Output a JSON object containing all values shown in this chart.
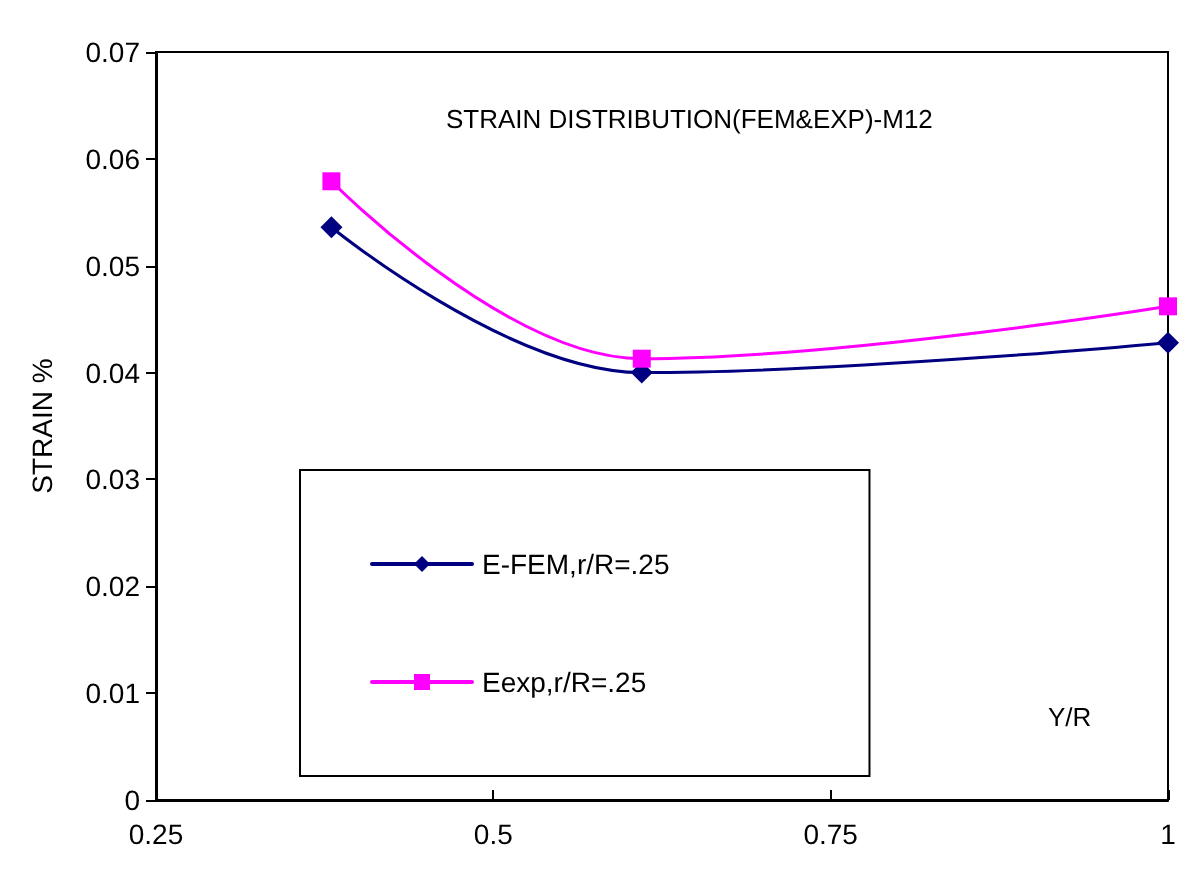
{
  "chart_data": {
    "type": "line",
    "title": "STRAIN DISTRIBUTION(FEM&EXP)-M12",
    "xlabel": "Y/R",
    "ylabel": "STRAIN %",
    "x": [
      0.38,
      0.61,
      1
    ],
    "series": [
      {
        "name": "E-FEM,r/R=.25",
        "color": "#000080",
        "marker": "diamond",
        "values": [
          0.0536,
          0.04,
          0.0428
        ]
      },
      {
        "name": "Eexp,r/R=.25",
        "color": "#ff00ff",
        "marker": "square",
        "values": [
          0.0579,
          0.0413,
          0.0462
        ]
      }
    ],
    "xlim": [
      0.25,
      1
    ],
    "xticks": [
      0.25,
      0.5,
      0.75,
      1
    ],
    "ylim": [
      0,
      0.07
    ],
    "yticks": [
      0,
      0.01,
      0.02,
      0.03,
      0.04,
      0.05,
      0.06,
      0.07
    ],
    "grid": false,
    "legend": "bottom left",
    "line_style": "solid"
  }
}
